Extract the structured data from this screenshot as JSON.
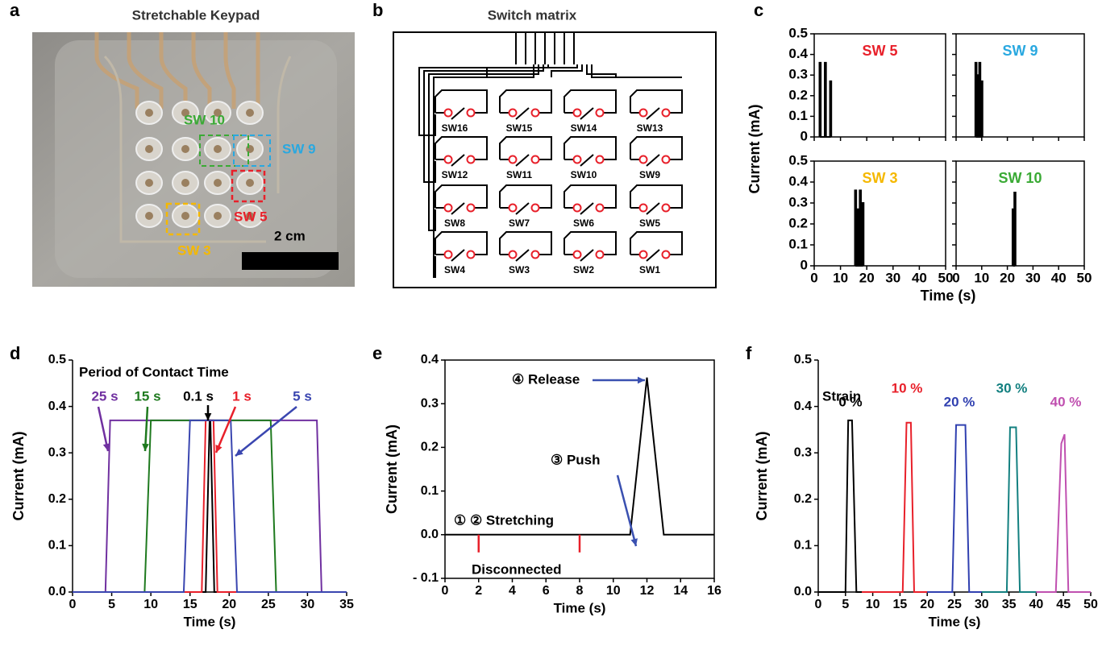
{
  "panel_a": {
    "label": "a",
    "title": "Stretchable Keypad",
    "labels": [
      {
        "text": "SW 10",
        "color": "#3aaa35"
      },
      {
        "text": "SW 9",
        "color": "#29a8e0"
      },
      {
        "text": "SW 5",
        "color": "#e8202a"
      },
      {
        "text": "SW 3",
        "color": "#f5b800"
      }
    ],
    "scale_label": "2 cm"
  },
  "panel_b": {
    "label": "b",
    "title": "Switch matrix",
    "switches": [
      [
        "SW16",
        "SW15",
        "SW14",
        "SW13"
      ],
      [
        "SW12",
        "SW11",
        "SW10",
        "SW9"
      ],
      [
        "SW8",
        "SW7",
        "SW6",
        "SW5"
      ],
      [
        "SW4",
        "SW3",
        "SW2",
        "SW1"
      ]
    ]
  },
  "panel_c": {
    "label": "c",
    "ylabel": "Current (mA)",
    "xlabel": "Time (s)"
  },
  "chart_data": [
    {
      "type": "line",
      "title": "SW 5",
      "title_color": "#e8202a",
      "color": "#000",
      "x": [
        2,
        2,
        2.5,
        2.5,
        4,
        4,
        4.5,
        4.5,
        6,
        6,
        6.5,
        6.5
      ],
      "values": [
        0,
        0.36,
        0.36,
        0,
        0,
        0.36,
        0.36,
        0,
        0,
        0.27,
        0.27,
        0
      ],
      "xlim": [
        0,
        50
      ],
      "ylim": [
        0,
        0.5
      ],
      "xticks": [
        0,
        10,
        20,
        30,
        40,
        50
      ],
      "yticks": [
        0,
        0.1,
        0.2,
        0.3,
        0.4,
        0.5
      ]
    },
    {
      "type": "line",
      "title": "SW 9",
      "title_color": "#29a8e0",
      "color": "#000",
      "x": [
        7.5,
        7.5,
        8,
        8,
        8.3,
        8.3,
        8.8,
        8.8,
        9,
        9,
        9.5,
        9.5,
        9.8,
        9.8,
        10.3,
        10.3
      ],
      "values": [
        0,
        0.36,
        0.36,
        0,
        0,
        0.3,
        0.3,
        0,
        0,
        0.36,
        0.36,
        0,
        0,
        0.27,
        0.27,
        0
      ],
      "xlim": [
        0,
        50
      ],
      "ylim": [
        0,
        0.5
      ],
      "xticks": [
        0,
        10,
        20,
        30,
        40,
        50
      ],
      "yticks": [
        0,
        0.1,
        0.2,
        0.3,
        0.4,
        0.5
      ]
    },
    {
      "type": "line",
      "title": "SW 3",
      "title_color": "#f5b800",
      "color": "#000",
      "x": [
        15.5,
        15.5,
        16,
        16,
        16.3,
        16.3,
        16.8,
        16.8,
        17.3,
        17.3,
        17.8,
        17.8,
        18.3,
        18.3,
        18.8,
        18.8
      ],
      "values": [
        0,
        0.36,
        0.36,
        0,
        0,
        0.27,
        0.27,
        0,
        0,
        0.36,
        0.36,
        0,
        0,
        0.3,
        0.3,
        0
      ],
      "xlim": [
        0,
        50
      ],
      "ylim": [
        0,
        0.5
      ],
      "xticks": [
        0,
        10,
        20,
        30,
        40,
        50
      ],
      "yticks": [
        0,
        0.1,
        0.2,
        0.3,
        0.4,
        0.5
      ]
    },
    {
      "type": "line",
      "title": "SW 10",
      "title_color": "#3aaa35",
      "color": "#000",
      "x": [
        22,
        22,
        22.5,
        22.5,
        22.7,
        22.7,
        23.2,
        23.2
      ],
      "values": [
        0,
        0.27,
        0.27,
        0,
        0,
        0.35,
        0.35,
        0
      ],
      "xlim": [
        0,
        50
      ],
      "ylim": [
        0,
        0.5
      ],
      "xticks": [
        0,
        10,
        20,
        30,
        40,
        50
      ],
      "yticks": [
        0,
        0.1,
        0.2,
        0.3,
        0.4,
        0.5
      ]
    },
    {
      "type": "line",
      "panel": "d",
      "xlabel": "Time (s)",
      "ylabel": "Current (mA)",
      "annotations": [
        "Period of Contact Time"
      ],
      "series": [
        {
          "name": "25 s",
          "color": "#7030a0",
          "x": [
            0,
            4.2,
            4.8,
            31.2,
            31.8,
            35
          ],
          "values": [
            0,
            0,
            0.37,
            0.37,
            0,
            0
          ]
        },
        {
          "name": "15 s",
          "color": "#1f7a1f",
          "x": [
            0,
            9.2,
            10,
            25.3,
            26,
            35
          ],
          "values": [
            0,
            0,
            0.37,
            0.37,
            0,
            0
          ]
        },
        {
          "name": "0.1 s",
          "color": "#000000",
          "x": [
            0,
            17,
            17.5,
            17.6,
            18.1,
            35
          ],
          "values": [
            0,
            0,
            0.37,
            0.37,
            0,
            0
          ]
        },
        {
          "name": "1 s",
          "color": "#e8202a",
          "x": [
            0,
            16.5,
            17,
            18,
            18.5,
            35
          ],
          "values": [
            0,
            0,
            0.37,
            0.37,
            0,
            0
          ]
        },
        {
          "name": "5 s",
          "color": "#3a46b0",
          "x": [
            0,
            14.2,
            15,
            20.2,
            21,
            35
          ],
          "values": [
            0,
            0,
            0.37,
            0.37,
            0,
            0
          ]
        }
      ],
      "xlim": [
        0,
        35
      ],
      "ylim": [
        0,
        0.5
      ],
      "xticks": [
        0,
        5,
        10,
        15,
        20,
        25,
        30,
        35
      ],
      "yticks": [
        {
          "value": 0,
          "label": "0.0"
        },
        0.1,
        0.2,
        0.3,
        0.4,
        0.5
      ]
    },
    {
      "type": "line",
      "panel": "e",
      "xlabel": "Time (s)",
      "ylabel": "Current (mA)",
      "color": "#000",
      "annotations": [
        "① ② Stretching",
        "Disconnected",
        "③ Push",
        "④ Release"
      ],
      "x": [
        0,
        11,
        12,
        13,
        16
      ],
      "values": [
        0,
        0,
        0.36,
        0,
        0
      ],
      "markers_x": [
        2,
        8
      ],
      "marker_color": "#e8202a",
      "xlim": [
        0,
        16
      ],
      "ylim": [
        -0.1,
        0.4
      ],
      "xticks": [
        0,
        2,
        4,
        6,
        8,
        10,
        12,
        14,
        16
      ],
      "yticks": [
        {
          "value": -0.1,
          "label": "- 0.1"
        },
        {
          "value": 0,
          "label": "0.0"
        },
        0.1,
        0.2,
        0.3,
        0.4
      ]
    },
    {
      "type": "line",
      "panel": "f",
      "xlabel": "Time (s)",
      "ylabel": "Current (mA)",
      "annotations": [
        "Strain"
      ],
      "series": [
        {
          "name": "0 %",
          "color": "#000000",
          "x": [
            0,
            5,
            5.5,
            6.2,
            7,
            8
          ],
          "values": [
            0,
            0,
            0.37,
            0.37,
            0,
            0
          ]
        },
        {
          "name": "10 %",
          "color": "#e8202a",
          "x": [
            8,
            15.5,
            16.2,
            17,
            17.6,
            20
          ],
          "values": [
            0,
            0,
            0.365,
            0.365,
            0,
            0
          ]
        },
        {
          "name": "20 %",
          "color": "#3040b0",
          "x": [
            20,
            24.6,
            25.3,
            27,
            27.7,
            30
          ],
          "values": [
            0,
            0,
            0.36,
            0.36,
            0,
            0
          ]
        },
        {
          "name": "30 %",
          "color": "#138080",
          "x": [
            30,
            34.6,
            35.2,
            36.3,
            37,
            40
          ],
          "values": [
            0,
            0,
            0.355,
            0.355,
            0,
            0
          ]
        },
        {
          "name": "40 %",
          "color": "#c050b0",
          "x": [
            40,
            43.6,
            44.6,
            45.2,
            45.9,
            50
          ],
          "values": [
            0,
            0,
            0.32,
            0.34,
            0,
            0
          ]
        }
      ],
      "xlim": [
        0,
        50
      ],
      "ylim": [
        0,
        0.5
      ],
      "xticks": [
        0,
        5,
        10,
        15,
        20,
        25,
        30,
        35,
        40,
        45,
        50
      ],
      "yticks": [
        {
          "value": 0,
          "label": "0.0"
        },
        0.1,
        0.2,
        0.3,
        0.4,
        0.5
      ]
    }
  ]
}
